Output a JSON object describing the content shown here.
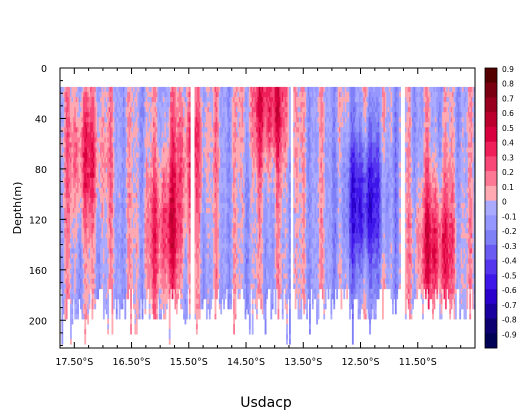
{
  "chart_data": {
    "type": "heatmap",
    "title": "",
    "xlabel": "Usdacp",
    "ylabel": "Depth(m)",
    "x_ticks": [
      "17.50°S",
      "16.50°S",
      "15.50°S",
      "14.50°S",
      "13.50°S",
      "12.50°S",
      "11.50°S"
    ],
    "x_tick_values": [
      -17.5,
      -16.5,
      -15.5,
      -14.5,
      -13.5,
      -12.5,
      -11.5
    ],
    "xlim": [
      -17.75,
      -10.5
    ],
    "y_ticks": [
      "0",
      "40",
      "80",
      "120",
      "160",
      "200"
    ],
    "y_tick_values": [
      0,
      40,
      80,
      120,
      160,
      200
    ],
    "ylim": [
      0,
      222
    ],
    "colorbar": {
      "labels": [
        "0.9",
        "0.8",
        "0.7",
        "0.6",
        "0.5",
        "0.4",
        "0.3",
        "0.2",
        "0.1",
        "0",
        "-0.1",
        "-0.2",
        "-0.3",
        "-0.4",
        "-0.5",
        "-0.6",
        "-0.7",
        "-0.8",
        "-0.9"
      ],
      "levels": [
        0.9,
        0.8,
        0.7,
        0.6,
        0.5,
        0.4,
        0.3,
        0.2,
        0.1,
        0,
        -0.1,
        -0.2,
        -0.3,
        -0.4,
        -0.5,
        -0.6,
        -0.7,
        -0.8,
        -0.9
      ],
      "colors": [
        "#550000",
        "#7a0011",
        "#99001f",
        "#bb002d",
        "#d9003f",
        "#ee1f59",
        "#f84878",
        "#fc7894",
        "#ffa9b2",
        "#aaaaff",
        "#9696ff",
        "#7f7ff6",
        "#6a5cf2",
        "#5535ee",
        "#3e16ea",
        "#2a00cc",
        "#1a009f",
        "#0c0070",
        "#000055"
      ]
    },
    "data_top_depth": 15,
    "gap_longitudes": [
      -15.45,
      -13.72,
      -11.78
    ],
    "features": [
      {
        "lon": -17.3,
        "depth": 70,
        "value": 0.35
      },
      {
        "lon": -15.9,
        "depth": 130,
        "value": 0.4
      },
      {
        "lon": -15.5,
        "depth": 60,
        "value": 0.3
      },
      {
        "lon": -14.1,
        "depth": 25,
        "value": 0.45
      },
      {
        "lon": -12.45,
        "depth": 105,
        "value": -0.55
      },
      {
        "lon": -11.2,
        "depth": 140,
        "value": 0.45
      }
    ]
  }
}
